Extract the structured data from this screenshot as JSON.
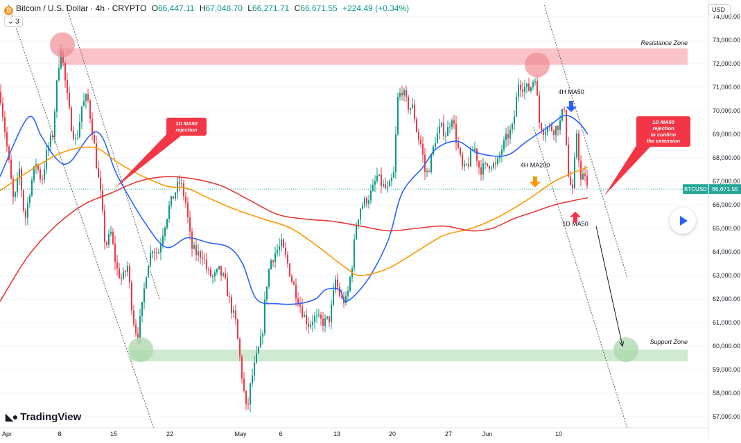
{
  "header": {
    "title": "Bitcoin / U.S. Dollar · 4h · CRYPTO",
    "ohlc": [
      {
        "k": "O",
        "v": "66,447.11"
      },
      {
        "k": "H",
        "v": "67,048.70"
      },
      {
        "k": "L",
        "v": "66,271.71"
      },
      {
        "k": "C",
        "v": "66,671.55"
      }
    ],
    "change": "+224.49 (+0.34%)",
    "indicator_count": "3",
    "currency": "USD",
    "coin_icon": "bitcoin-icon"
  },
  "branding": {
    "name": "TradingView",
    "icon": "tradingview-logo-icon"
  },
  "colors": {
    "up": "#089981",
    "down": "#f23645",
    "ma50_4h": "#2962ff",
    "ma200_4h": "#ff9800",
    "ma50_1d": "#e53935",
    "resistance_zone": "#f8b8c0",
    "support_zone": "#c8e6c9",
    "last_price": "#26a69a"
  },
  "chart_data": {
    "type": "candlestick",
    "symbol": "BTCUSD",
    "last_price_label": "66,671.55",
    "last_price": 66671.55,
    "ylim": [
      56500,
      74500
    ],
    "y_ticks": [
      "57,000.00",
      "58,000.00",
      "59,000.00",
      "60,000.00",
      "61,000.00",
      "62,000.00",
      "63,000.00",
      "64,000.00",
      "65,000.00",
      "66,000.00",
      "67,000.00",
      "68,000.00",
      "69,000.00",
      "70,000.00",
      "71,000.00",
      "72,000.00",
      "73,000.00",
      "74,000.00"
    ],
    "x_ticks": [
      "Apr",
      "8",
      "15",
      "22",
      "May",
      "6",
      "13",
      "20",
      "27",
      "Jun",
      "10"
    ],
    "price_path": [
      [
        0,
        70800
      ],
      [
        12,
        68000
      ],
      [
        20,
        66000
      ],
      [
        28,
        67500
      ],
      [
        36,
        65300
      ],
      [
        44,
        66800
      ],
      [
        52,
        67800
      ],
      [
        60,
        67000
      ],
      [
        68,
        68300
      ],
      [
        76,
        69000
      ],
      [
        84,
        71800
      ],
      [
        88,
        72700
      ],
      [
        95,
        71000
      ],
      [
        102,
        69500
      ],
      [
        110,
        68600
      ],
      [
        118,
        70200
      ],
      [
        126,
        70600
      ],
      [
        134,
        69000
      ],
      [
        140,
        67500
      ],
      [
        146,
        66200
      ],
      [
        152,
        64200
      ],
      [
        160,
        64800
      ],
      [
        168,
        63300
      ],
      [
        176,
        62800
      ],
      [
        184,
        63400
      ],
      [
        192,
        61200
      ],
      [
        198,
        60400
      ],
      [
        204,
        61400
      ],
      [
        212,
        63400
      ],
      [
        220,
        64200
      ],
      [
        228,
        63900
      ],
      [
        236,
        65000
      ],
      [
        244,
        65900
      ],
      [
        252,
        66500
      ],
      [
        260,
        67000
      ],
      [
        268,
        66100
      ],
      [
        276,
        64200
      ],
      [
        284,
        63900
      ],
      [
        292,
        63900
      ],
      [
        300,
        63100
      ],
      [
        308,
        62900
      ],
      [
        316,
        63200
      ],
      [
        324,
        62800
      ],
      [
        332,
        61800
      ],
      [
        340,
        61000
      ],
      [
        346,
        59500
      ],
      [
        350,
        58500
      ],
      [
        356,
        57100
      ],
      [
        362,
        58500
      ],
      [
        370,
        59500
      ],
      [
        378,
        60400
      ],
      [
        384,
        62500
      ],
      [
        390,
        63600
      ],
      [
        398,
        64000
      ],
      [
        406,
        64300
      ],
      [
        414,
        63600
      ],
      [
        422,
        62700
      ],
      [
        430,
        62000
      ],
      [
        438,
        61300
      ],
      [
        446,
        60900
      ],
      [
        452,
        61200
      ],
      [
        460,
        61100
      ],
      [
        468,
        61000
      ],
      [
        476,
        61200
      ],
      [
        484,
        62800
      ],
      [
        492,
        62000
      ],
      [
        500,
        61900
      ],
      [
        508,
        63500
      ],
      [
        514,
        65200
      ],
      [
        520,
        65900
      ],
      [
        528,
        66200
      ],
      [
        536,
        66500
      ],
      [
        544,
        67200
      ],
      [
        552,
        66800
      ],
      [
        560,
        66600
      ],
      [
        568,
        67300
      ],
      [
        574,
        70500
      ],
      [
        580,
        70900
      ],
      [
        588,
        70200
      ],
      [
        596,
        70100
      ],
      [
        602,
        69000
      ],
      [
        608,
        68500
      ],
      [
        614,
        67200
      ],
      [
        620,
        67700
      ],
      [
        628,
        68800
      ],
      [
        636,
        69300
      ],
      [
        644,
        69000
      ],
      [
        652,
        69800
      ],
      [
        660,
        68500
      ],
      [
        668,
        67400
      ],
      [
        676,
        67800
      ],
      [
        684,
        68500
      ],
      [
        692,
        67500
      ],
      [
        700,
        67600
      ],
      [
        708,
        67800
      ],
      [
        716,
        67600
      ],
      [
        724,
        68400
      ],
      [
        732,
        68900
      ],
      [
        740,
        69300
      ],
      [
        748,
        71200
      ],
      [
        756,
        71000
      ],
      [
        764,
        70900
      ],
      [
        772,
        71500
      ],
      [
        778,
        69500
      ],
      [
        784,
        69200
      ],
      [
        792,
        69300
      ],
      [
        800,
        69200
      ],
      [
        808,
        69500
      ],
      [
        814,
        70200
      ],
      [
        820,
        67200
      ],
      [
        826,
        66500
      ],
      [
        832,
        69100
      ],
      [
        838,
        67000
      ],
      [
        844,
        67300
      ],
      [
        848,
        66500
      ]
    ],
    "series": [
      {
        "name": "4H MA50",
        "color": "#2962ff",
        "points": [
          [
            0,
            67200
          ],
          [
            40,
            69700
          ],
          [
            60,
            68900
          ],
          [
            80,
            68000
          ],
          [
            100,
            67800
          ],
          [
            140,
            69100
          ],
          [
            170,
            67200
          ],
          [
            210,
            65200
          ],
          [
            240,
            64200
          ],
          [
            270,
            64600
          ],
          [
            300,
            64400
          ],
          [
            330,
            64200
          ],
          [
            350,
            63500
          ],
          [
            370,
            62000
          ],
          [
            400,
            61800
          ],
          [
            430,
            61800
          ],
          [
            455,
            62000
          ],
          [
            470,
            62400
          ],
          [
            490,
            62400
          ],
          [
            500,
            61900
          ],
          [
            530,
            62800
          ],
          [
            560,
            64500
          ],
          [
            580,
            66500
          ],
          [
            610,
            67600
          ],
          [
            630,
            68400
          ],
          [
            660,
            68700
          ],
          [
            690,
            68200
          ],
          [
            730,
            68100
          ],
          [
            760,
            68700
          ],
          [
            790,
            69300
          ],
          [
            815,
            69800
          ],
          [
            835,
            69500
          ],
          [
            848,
            69000
          ]
        ]
      },
      {
        "name": "4H MA200",
        "color": "#ff9800",
        "points": [
          [
            0,
            66600
          ],
          [
            40,
            67400
          ],
          [
            80,
            68100
          ],
          [
            110,
            68400
          ],
          [
            140,
            68400
          ],
          [
            170,
            67800
          ],
          [
            200,
            67300
          ],
          [
            240,
            66800
          ],
          [
            270,
            66700
          ],
          [
            300,
            66300
          ],
          [
            340,
            65800
          ],
          [
            380,
            65400
          ],
          [
            420,
            65000
          ],
          [
            460,
            64200
          ],
          [
            500,
            63300
          ],
          [
            520,
            63000
          ],
          [
            560,
            63300
          ],
          [
            600,
            64000
          ],
          [
            640,
            64700
          ],
          [
            680,
            65000
          ],
          [
            720,
            65500
          ],
          [
            760,
            66200
          ],
          [
            800,
            67000
          ],
          [
            830,
            67400
          ],
          [
            848,
            67600
          ]
        ]
      },
      {
        "name": "1D MA50",
        "color": "#e53935",
        "points": [
          [
            0,
            61900
          ],
          [
            40,
            63800
          ],
          [
            80,
            65100
          ],
          [
            120,
            66000
          ],
          [
            160,
            66500
          ],
          [
            200,
            67000
          ],
          [
            240,
            67200
          ],
          [
            280,
            67100
          ],
          [
            320,
            66800
          ],
          [
            360,
            66200
          ],
          [
            400,
            65600
          ],
          [
            440,
            65400
          ],
          [
            480,
            65300
          ],
          [
            520,
            65100
          ],
          [
            560,
            64900
          ],
          [
            600,
            65000
          ],
          [
            640,
            65100
          ],
          [
            680,
            64900
          ],
          [
            710,
            65000
          ],
          [
            740,
            65400
          ],
          [
            770,
            65700
          ],
          [
            800,
            66000
          ],
          [
            830,
            66200
          ],
          [
            848,
            66300
          ]
        ]
      }
    ],
    "zones": [
      {
        "name": "Resistance Zone",
        "y_low": 71950,
        "y_high": 72650,
        "color": "#f8b8c0"
      },
      {
        "name": "Support Zone",
        "y_low": 59350,
        "y_high": 59850,
        "color": "#c8e6c9"
      }
    ],
    "annotations": {
      "callouts": [
        {
          "text_lines": [
            "1D MA50",
            "rejection"
          ],
          "color": "#f23645",
          "tip_x": 165,
          "tip_y": 66700
        },
        {
          "text_lines": [
            "1D MA50",
            "rejection",
            "to confirm",
            "the extension"
          ],
          "color": "#f23645",
          "tip_x": 872,
          "tip_y": 66400
        }
      ],
      "labels": [
        {
          "text": "4H MA50",
          "x": 824,
          "y": 70700
        },
        {
          "text": "4H MA200",
          "x": 772,
          "y": 67600
        },
        {
          "text": "1D MA50",
          "x": 830,
          "y": 65100
        }
      ],
      "arrows": [
        {
          "dir": "down",
          "color": "#2962ff",
          "x": 824,
          "y": 70000
        },
        {
          "dir": "down",
          "color": "#ff9800",
          "x": 772,
          "y": 66800
        },
        {
          "dir": "up",
          "color": "#f23645",
          "x": 830,
          "y": 65600
        }
      ],
      "circles": [
        {
          "color": "red",
          "x": 90,
          "y": 72800
        },
        {
          "color": "red",
          "x": 775,
          "y": 71950
        },
        {
          "color": "green",
          "x": 203,
          "y": 59850
        },
        {
          "color": "green",
          "x": 903,
          "y": 59850
        }
      ],
      "projection": {
        "from": [
          860,
          65100
        ],
        "to": [
          898,
          60000
        ]
      },
      "channel": [
        {
          "from": [
            95,
            74500
          ],
          "to": [
            230,
            62000
          ]
        },
        {
          "from": [
            12,
            74500
          ],
          "to": [
            222,
            56500
          ]
        },
        {
          "from": [
            785,
            74500
          ],
          "to": [
            905,
            62900
          ]
        },
        {
          "from": [
            770,
            69300
          ],
          "to": [
            905,
            56500
          ]
        }
      ]
    }
  }
}
